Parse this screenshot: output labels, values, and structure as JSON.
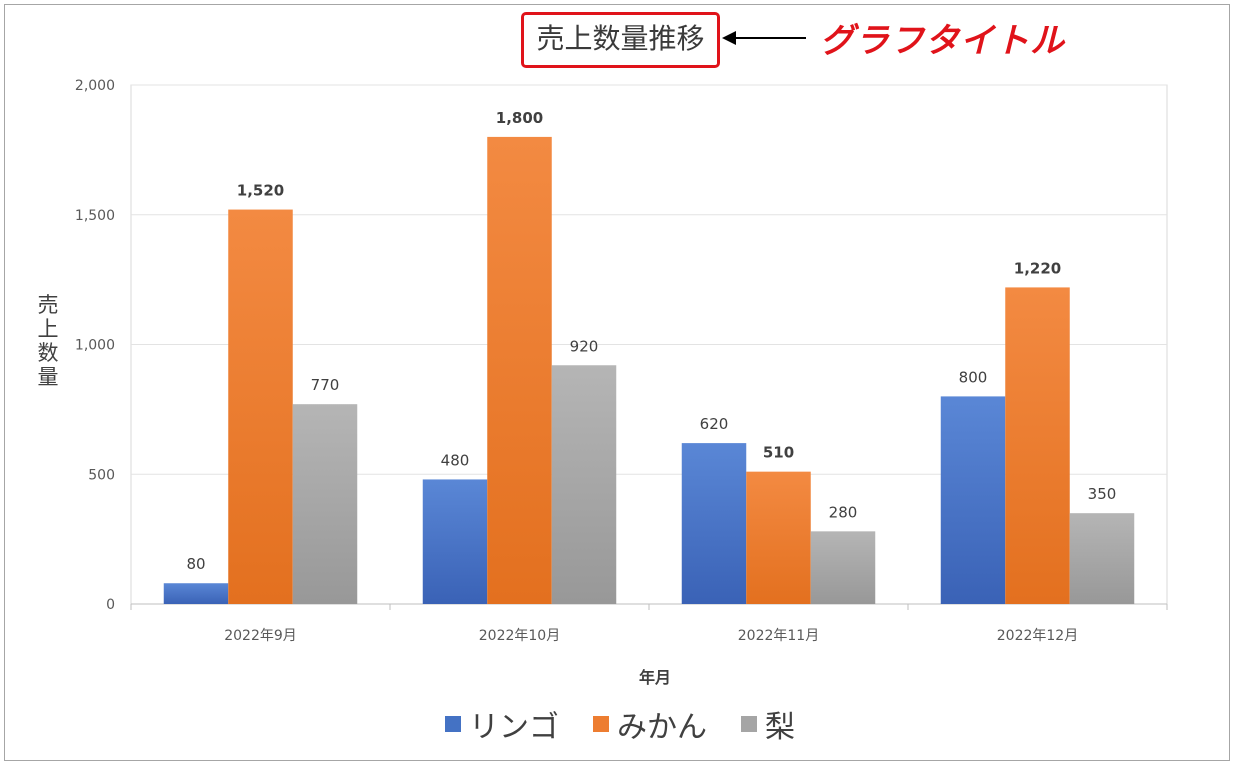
{
  "chart_data": {
    "type": "bar",
    "title": "売上数量推移",
    "xlabel": "年月",
    "ylabel": "売上数量",
    "categories": [
      "2022年9月",
      "2022年10月",
      "2022年11月",
      "2022年12月"
    ],
    "series": [
      {
        "name": "リンゴ",
        "color": "#4472c4",
        "values": [
          80,
          480,
          620,
          800
        ]
      },
      {
        "name": "みかん",
        "color": "#ed7d31",
        "values": [
          1520,
          1800,
          510,
          1220
        ]
      },
      {
        "name": "梨",
        "color": "#a5a5a5",
        "values": [
          770,
          920,
          280,
          350
        ]
      }
    ],
    "ylim": [
      0,
      2000
    ],
    "yticks": [
      0,
      500,
      1000,
      1500,
      2000
    ],
    "ytick_labels": [
      "0",
      "500",
      "1,000",
      "1,500",
      "2,000"
    ],
    "data_labels": [
      [
        "80",
        "480",
        "620",
        "800"
      ],
      [
        "1,520",
        "1,800",
        "510",
        "1,220"
      ],
      [
        "770",
        "920",
        "280",
        "350"
      ]
    ],
    "grid": true,
    "legend_position": "bottom"
  },
  "annotation": {
    "callout_text": "グラフタイトル",
    "color": "#e0131a"
  }
}
